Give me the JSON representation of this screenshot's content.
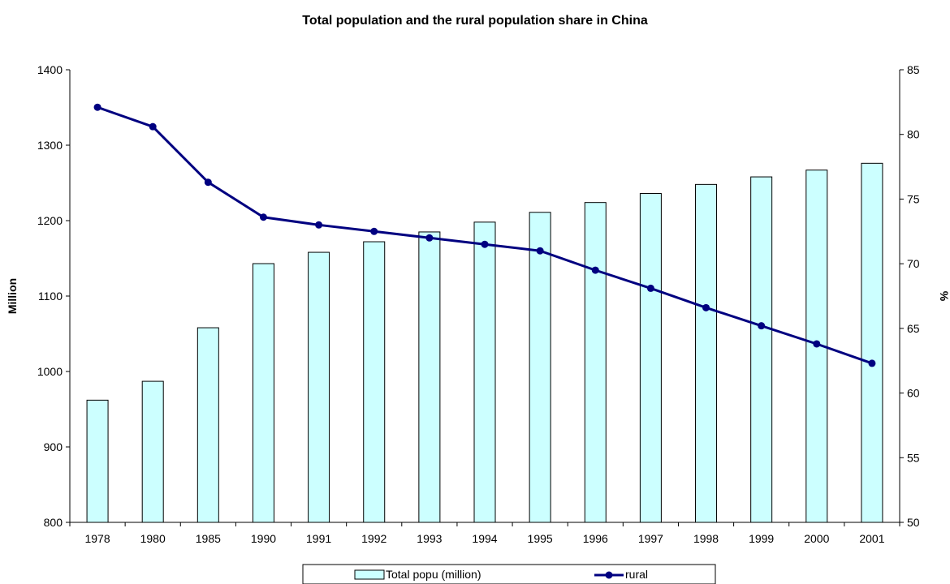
{
  "chart_data": {
    "type": "bar",
    "title": "Total population and the rural population share in China",
    "categories": [
      "1978",
      "1980",
      "1985",
      "1990",
      "1991",
      "1992",
      "1993",
      "1994",
      "1995",
      "1996",
      "1997",
      "1998",
      "1999",
      "2000",
      "2001"
    ],
    "series": [
      {
        "name": "Total popu (million)",
        "type": "bar",
        "axis": "left",
        "color": "#ccffff",
        "values": [
          962,
          987,
          1058,
          1143,
          1158,
          1172,
          1185,
          1198,
          1211,
          1224,
          1236,
          1248,
          1258,
          1267,
          1276
        ]
      },
      {
        "name": "rural",
        "type": "line",
        "axis": "right",
        "color": "#000080",
        "marker": "circle",
        "values": [
          82.1,
          80.6,
          76.3,
          73.6,
          73.0,
          72.5,
          72.0,
          71.5,
          71.0,
          69.5,
          68.1,
          66.6,
          65.2,
          63.8,
          62.3
        ]
      }
    ],
    "ylabel": "Million",
    "ylim": [
      800,
      1400
    ],
    "yticks": [
      800,
      900,
      1000,
      1100,
      1200,
      1300,
      1400
    ],
    "y2label": "%",
    "y2lim": [
      50,
      85
    ],
    "y2ticks": [
      50,
      55,
      60,
      65,
      70,
      75,
      80,
      85
    ],
    "grid": false,
    "legend_position": "bottom"
  }
}
